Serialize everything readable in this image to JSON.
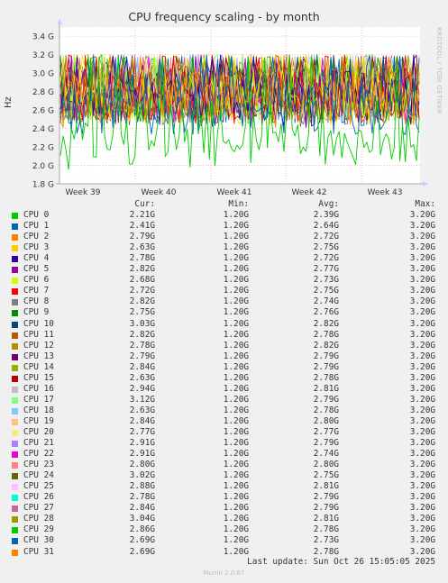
{
  "chart_data": {
    "type": "line",
    "title": "CPU frequency scaling - by month",
    "ylabel": "Hz",
    "ylim": [
      1.8,
      3.5
    ],
    "yticks": [
      {
        "value": 1.8,
        "label": "1.8 G"
      },
      {
        "value": 2.0,
        "label": "2.0 G"
      },
      {
        "value": 2.2,
        "label": "2.2 G"
      },
      {
        "value": 2.4,
        "label": "2.4 G"
      },
      {
        "value": 2.6,
        "label": "2.6 G"
      },
      {
        "value": 2.8,
        "label": "2.8 G"
      },
      {
        "value": 3.0,
        "label": "3.0 G"
      },
      {
        "value": 3.2,
        "label": "3.2 G"
      },
      {
        "value": 3.4,
        "label": "3.4 G"
      }
    ],
    "xticks": [
      "Week 39",
      "Week 40",
      "Week 41",
      "Week 42",
      "Week 43"
    ],
    "grid": true,
    "value_range": {
      "min": 1.9,
      "max": 3.2
    },
    "series_note": "32 dense noisy series, values mostly between 2.2G and 3.2G"
  },
  "side_credit": "RRDTOOL / TOBI OETIKER",
  "legend": {
    "headers": {
      "cur": "Cur:",
      "min": "Min:",
      "avg": "Avg:",
      "max": "Max:"
    },
    "rows": [
      {
        "name": "CPU 0",
        "color": "#00cc00",
        "cur": "2.21G",
        "min": "1.20G",
        "avg": "2.39G",
        "max": "3.20G"
      },
      {
        "name": "CPU 1",
        "color": "#0066b3",
        "cur": "2.41G",
        "min": "1.20G",
        "avg": "2.64G",
        "max": "3.20G"
      },
      {
        "name": "CPU 2",
        "color": "#ff8000",
        "cur": "2.79G",
        "min": "1.20G",
        "avg": "2.72G",
        "max": "3.20G"
      },
      {
        "name": "CPU 3",
        "color": "#ffcc00",
        "cur": "2.63G",
        "min": "1.20G",
        "avg": "2.75G",
        "max": "3.20G"
      },
      {
        "name": "CPU 4",
        "color": "#330099",
        "cur": "2.78G",
        "min": "1.20G",
        "avg": "2.72G",
        "max": "3.20G"
      },
      {
        "name": "CPU 5",
        "color": "#990099",
        "cur": "2.82G",
        "min": "1.20G",
        "avg": "2.77G",
        "max": "3.20G"
      },
      {
        "name": "CPU 6",
        "color": "#ccff00",
        "cur": "2.68G",
        "min": "1.20G",
        "avg": "2.73G",
        "max": "3.20G"
      },
      {
        "name": "CPU 7",
        "color": "#ff0000",
        "cur": "2.72G",
        "min": "1.20G",
        "avg": "2.75G",
        "max": "3.20G"
      },
      {
        "name": "CPU 8",
        "color": "#808080",
        "cur": "2.82G",
        "min": "1.20G",
        "avg": "2.74G",
        "max": "3.20G"
      },
      {
        "name": "CPU 9",
        "color": "#008f00",
        "cur": "2.75G",
        "min": "1.20G",
        "avg": "2.76G",
        "max": "3.20G"
      },
      {
        "name": "CPU 10",
        "color": "#00487d",
        "cur": "3.03G",
        "min": "1.20G",
        "avg": "2.82G",
        "max": "3.20G"
      },
      {
        "name": "CPU 11",
        "color": "#b35a00",
        "cur": "2.82G",
        "min": "1.20G",
        "avg": "2.78G",
        "max": "3.20G"
      },
      {
        "name": "CPU 12",
        "color": "#b38f00",
        "cur": "2.78G",
        "min": "1.20G",
        "avg": "2.82G",
        "max": "3.20G"
      },
      {
        "name": "CPU 13",
        "color": "#6b006b",
        "cur": "2.79G",
        "min": "1.20G",
        "avg": "2.79G",
        "max": "3.20G"
      },
      {
        "name": "CPU 14",
        "color": "#8fb300",
        "cur": "2.84G",
        "min": "1.20G",
        "avg": "2.79G",
        "max": "3.20G"
      },
      {
        "name": "CPU 15",
        "color": "#b30000",
        "cur": "2.63G",
        "min": "1.20G",
        "avg": "2.78G",
        "max": "3.20G"
      },
      {
        "name": "CPU 16",
        "color": "#bebebe",
        "cur": "2.94G",
        "min": "1.20G",
        "avg": "2.81G",
        "max": "3.20G"
      },
      {
        "name": "CPU 17",
        "color": "#80ff80",
        "cur": "3.12G",
        "min": "1.20G",
        "avg": "2.79G",
        "max": "3.20G"
      },
      {
        "name": "CPU 18",
        "color": "#80c9ff",
        "cur": "2.63G",
        "min": "1.20G",
        "avg": "2.78G",
        "max": "3.20G"
      },
      {
        "name": "CPU 19",
        "color": "#ffc080",
        "cur": "2.84G",
        "min": "1.20G",
        "avg": "2.80G",
        "max": "3.20G"
      },
      {
        "name": "CPU 20",
        "color": "#ffe680",
        "cur": "2.77G",
        "min": "1.20G",
        "avg": "2.77G",
        "max": "3.20G"
      },
      {
        "name": "CPU 21",
        "color": "#aa80ff",
        "cur": "2.91G",
        "min": "1.20G",
        "avg": "2.79G",
        "max": "3.20G"
      },
      {
        "name": "CPU 22",
        "color": "#ee00cc",
        "cur": "2.91G",
        "min": "1.20G",
        "avg": "2.74G",
        "max": "3.20G"
      },
      {
        "name": "CPU 23",
        "color": "#ff8080",
        "cur": "2.80G",
        "min": "1.20G",
        "avg": "2.80G",
        "max": "3.20G"
      },
      {
        "name": "CPU 24",
        "color": "#666600",
        "cur": "3.02G",
        "min": "1.20G",
        "avg": "2.75G",
        "max": "3.20G"
      },
      {
        "name": "CPU 25",
        "color": "#ffbfff",
        "cur": "2.88G",
        "min": "1.20G",
        "avg": "2.81G",
        "max": "3.20G"
      },
      {
        "name": "CPU 26",
        "color": "#00ffcc",
        "cur": "2.78G",
        "min": "1.20G",
        "avg": "2.79G",
        "max": "3.20G"
      },
      {
        "name": "CPU 27",
        "color": "#cc6699",
        "cur": "2.84G",
        "min": "1.20G",
        "avg": "2.79G",
        "max": "3.20G"
      },
      {
        "name": "CPU 28",
        "color": "#999900",
        "cur": "3.04G",
        "min": "1.20G",
        "avg": "2.81G",
        "max": "3.20G"
      },
      {
        "name": "CPU 29",
        "color": "#00cc00",
        "cur": "2.86G",
        "min": "1.20G",
        "avg": "2.78G",
        "max": "3.20G"
      },
      {
        "name": "CPU 30",
        "color": "#0066b3",
        "cur": "2.69G",
        "min": "1.20G",
        "avg": "2.73G",
        "max": "3.20G"
      },
      {
        "name": "CPU 31",
        "color": "#ff8000",
        "cur": "2.69G",
        "min": "1.20G",
        "avg": "2.78G",
        "max": "3.20G"
      }
    ]
  },
  "footer": {
    "last_update": "Last update: Sun Oct 26 15:05:05 2025",
    "munin": "Munin 2.0.67"
  }
}
